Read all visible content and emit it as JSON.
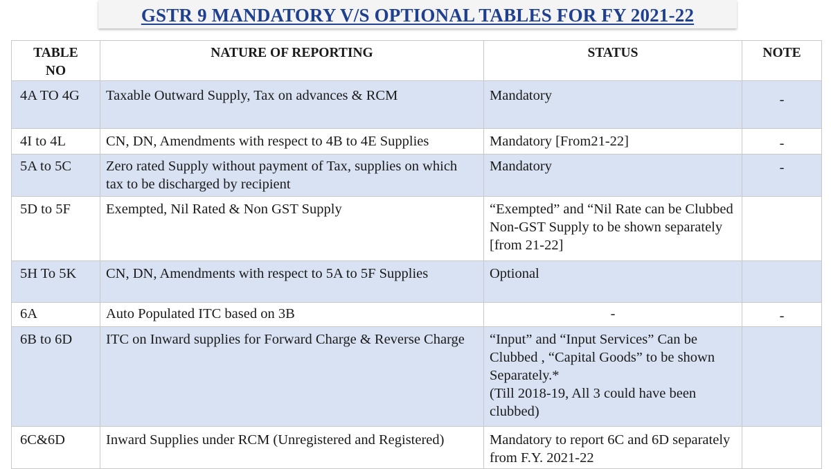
{
  "title": "GSTR 9 MANDATORY V/S OPTIONAL TABLES FOR FY 2021-22",
  "headers": {
    "table_no": "TABLE\nNO",
    "nature": "NATURE OF REPORTING",
    "status": "STATUS",
    "note": "NOTE"
  },
  "rows": [
    {
      "table_no": "4A TO 4G",
      "nature": "Taxable Outward Supply, Tax on advances & RCM",
      "status": "Mandatory",
      "note": "-"
    },
    {
      "table_no": "4I to 4L",
      "nature": "CN, DN, Amendments with respect to 4B to 4E Supplies",
      "status": "Mandatory [From21-22]",
      "note": "-"
    },
    {
      "table_no": "5A to 5C",
      "nature": "Zero rated Supply without payment of Tax, supplies on which tax to be discharged by recipient",
      "status": "Mandatory",
      "note": "-"
    },
    {
      "table_no": "5D to 5F",
      "nature": "Exempted, Nil Rated & Non GST Supply",
      "status": "“Exempted” and “Nil Rate can be Clubbed Non-GST Supply to be shown separately [from 21-22]",
      "note": ""
    },
    {
      "table_no": "5H To 5K",
      "nature": "CN, DN, Amendments with respect to 5A to 5F Supplies",
      "status": "Optional",
      "note": ""
    },
    {
      "table_no": "6A",
      "nature": "Auto Populated ITC based on 3B",
      "status": "-",
      "note": "-"
    },
    {
      "table_no": "6B to 6D",
      "nature": "ITC on Inward supplies for Forward Charge & Reverse Charge",
      "status": "“Input” and “Input Services” Can be Clubbed , “Capital Goods” to be shown Separately.*\n(Till 2018-19, All 3 could have been clubbed)",
      "note": ""
    },
    {
      "table_no": "6C&6D",
      "nature": "Inward Supplies under RCM (Unregistered and Registered)",
      "status": "Mandatory to report 6C and 6D separately from F.Y. 2021-22",
      "note": ""
    }
  ]
}
